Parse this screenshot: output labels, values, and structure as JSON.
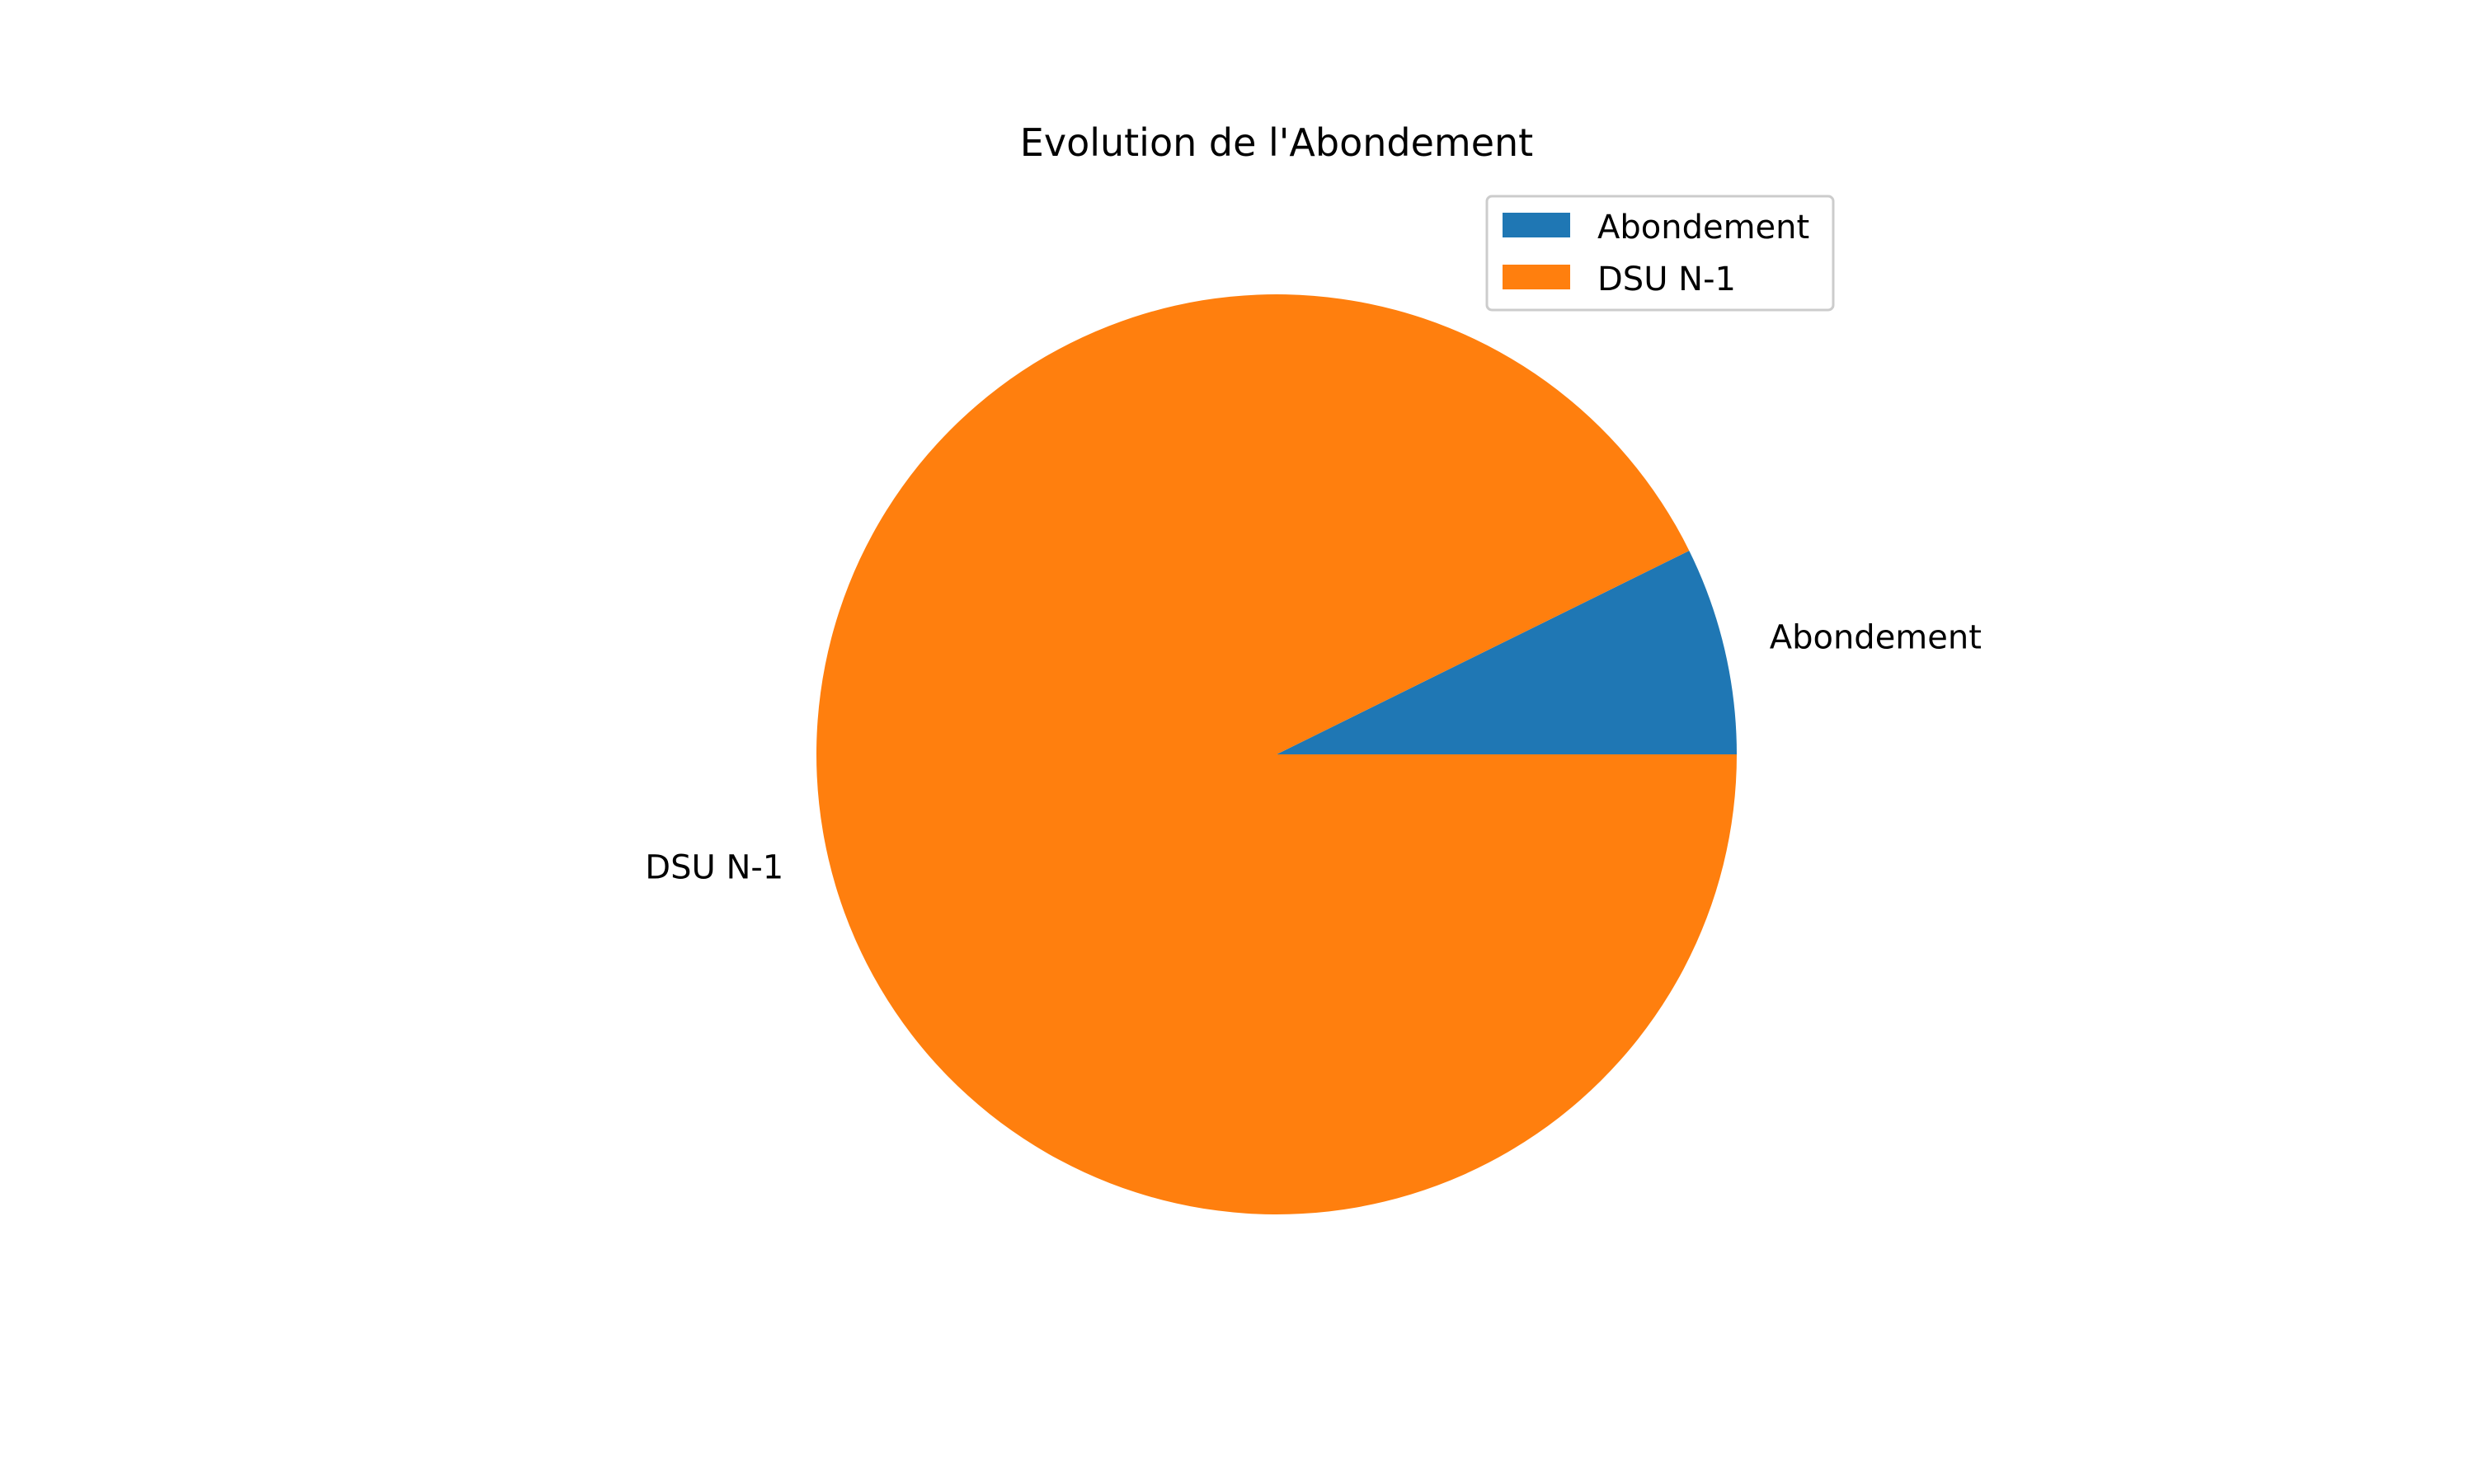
{
  "chart_data": {
    "type": "pie",
    "title": "Evolution de l'Abondement",
    "slices": [
      {
        "label": "Abondement",
        "value": 7.3,
        "color": "#1f77b4"
      },
      {
        "label": "DSU N-1",
        "value": 92.7,
        "color": "#ff7f0e"
      }
    ],
    "start_angle": 0,
    "direction": "counterclockwise",
    "legend": {
      "position": "top-right",
      "entries": [
        "Abondement",
        "DSU N-1"
      ]
    }
  }
}
